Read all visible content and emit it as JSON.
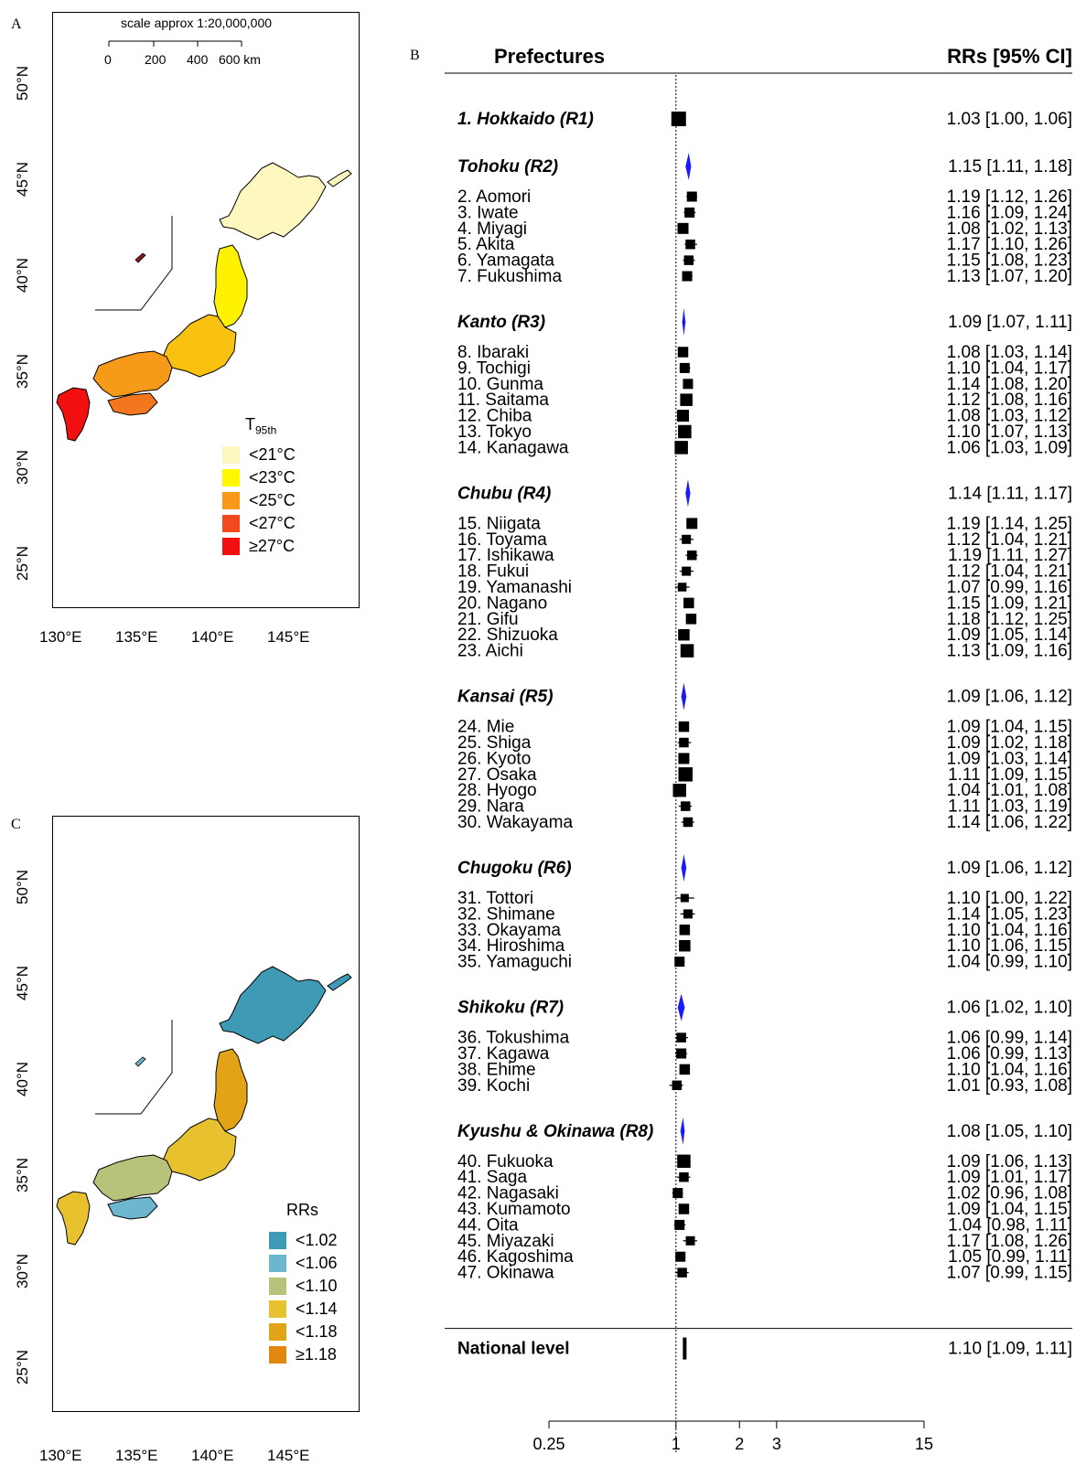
{
  "panels": {
    "a": {
      "letter": "A"
    },
    "b": {
      "letter": "B"
    },
    "c": {
      "letter": "C"
    }
  },
  "map_a": {
    "scale_title": "scale approx 1:20,000,000",
    "scale_ticks": [
      "0",
      "200",
      "400",
      "600 km"
    ],
    "lon_labels": [
      "130°E",
      "135°E",
      "140°E",
      "145°E"
    ],
    "lat_labels": [
      "25°N",
      "30°N",
      "35°N",
      "40°N",
      "45°N",
      "50°N"
    ],
    "legend_title_main": "T",
    "legend_title_sub": "95th",
    "legend": [
      {
        "label": "<21°C",
        "color": "#FFF7C0"
      },
      {
        "label": "<23°C",
        "color": "#FFF700"
      },
      {
        "label": "<25°C",
        "color": "#F79A1A"
      },
      {
        "label": "<27°C",
        "color": "#F24A1E"
      },
      {
        "label": "≥27°C",
        "color": "#F20F0F"
      }
    ]
  },
  "map_c": {
    "lon_labels": [
      "130°E",
      "135°E",
      "140°E",
      "145°E"
    ],
    "lat_labels": [
      "25°N",
      "30°N",
      "35°N",
      "40°N",
      "45°N",
      "50°N"
    ],
    "legend_title": "RRs",
    "legend": [
      {
        "label": "<1.02",
        "color": "#3E9AB5"
      },
      {
        "label": "<1.06",
        "color": "#6CB6CE"
      },
      {
        "label": "<1.10",
        "color": "#B8C27A"
      },
      {
        "label": "<1.14",
        "color": "#E7C12E"
      },
      {
        "label": "<1.18",
        "color": "#E2A416"
      },
      {
        "label": "≥1.18",
        "color": "#E4870E"
      }
    ]
  },
  "chart_data": {
    "type": "forest",
    "col_left": "Prefectures",
    "col_right": "RRs [95% CI]",
    "x_scale": "log",
    "x_ticks": [
      0.25,
      1,
      2,
      3,
      15
    ],
    "x_tick_labels": [
      "0.25",
      "1",
      "2",
      "3",
      "15"
    ],
    "reference_line": 1,
    "summary_color": "#1A1AFF",
    "rows": [
      {
        "kind": "region",
        "label": "1. Hokkaido (R1)",
        "rr": 1.03,
        "lo": 1.0,
        "hi": 1.06,
        "text": "1.03 [1.00, 1.06]",
        "w": 1.0,
        "marker": "square"
      },
      {
        "kind": "region",
        "label": "Tohoku (R2)",
        "rr": 1.15,
        "lo": 1.11,
        "hi": 1.18,
        "text": "1.15 [1.11, 1.18]"
      },
      {
        "kind": "pref",
        "label": "2. Aomori",
        "rr": 1.19,
        "lo": 1.12,
        "hi": 1.26,
        "text": "1.19 [1.12, 1.26]",
        "w": 0.5
      },
      {
        "kind": "pref",
        "label": "3. Iwate",
        "rr": 1.16,
        "lo": 1.09,
        "hi": 1.24,
        "text": "1.16 [1.09, 1.24]",
        "w": 0.5
      },
      {
        "kind": "pref",
        "label": "4. Miyagi",
        "rr": 1.08,
        "lo": 1.02,
        "hi": 1.13,
        "text": "1.08 [1.02, 1.13]",
        "w": 0.6
      },
      {
        "kind": "pref",
        "label": "5. Akita",
        "rr": 1.17,
        "lo": 1.1,
        "hi": 1.26,
        "text": "1.17 [1.10, 1.26]",
        "w": 0.45
      },
      {
        "kind": "pref",
        "label": "6. Yamagata",
        "rr": 1.15,
        "lo": 1.08,
        "hi": 1.23,
        "text": "1.15 [1.08, 1.23]",
        "w": 0.45
      },
      {
        "kind": "pref",
        "label": "7. Fukushima",
        "rr": 1.13,
        "lo": 1.07,
        "hi": 1.2,
        "text": "1.13 [1.07, 1.20]",
        "w": 0.5
      },
      {
        "kind": "region",
        "label": "Kanto (R3)",
        "rr": 1.09,
        "lo": 1.07,
        "hi": 1.11,
        "text": "1.09 [1.07, 1.11]"
      },
      {
        "kind": "pref",
        "label": "8. Ibaraki",
        "rr": 1.08,
        "lo": 1.03,
        "hi": 1.14,
        "text": "1.08 [1.03, 1.14]",
        "w": 0.55
      },
      {
        "kind": "pref",
        "label": "9. Tochigi",
        "rr": 1.1,
        "lo": 1.04,
        "hi": 1.17,
        "text": "1.10 [1.04, 1.17]",
        "w": 0.5
      },
      {
        "kind": "pref",
        "label": "10. Gunma",
        "rr": 1.14,
        "lo": 1.08,
        "hi": 1.2,
        "text": "1.14 [1.08, 1.20]",
        "w": 0.5
      },
      {
        "kind": "pref",
        "label": "11. Saitama",
        "rr": 1.12,
        "lo": 1.08,
        "hi": 1.16,
        "text": "1.12 [1.08, 1.16]",
        "w": 0.75
      },
      {
        "kind": "pref",
        "label": "12. Chiba",
        "rr": 1.08,
        "lo": 1.03,
        "hi": 1.12,
        "text": "1.08 [1.03, 1.12]",
        "w": 0.7
      },
      {
        "kind": "pref",
        "label": "13. Tokyo",
        "rr": 1.1,
        "lo": 1.07,
        "hi": 1.13,
        "text": "1.10 [1.07, 1.13]",
        "w": 0.85
      },
      {
        "kind": "pref",
        "label": "14. Kanagawa",
        "rr": 1.06,
        "lo": 1.03,
        "hi": 1.09,
        "text": "1.06 [1.03, 1.09]",
        "w": 0.85
      },
      {
        "kind": "region",
        "label": "Chubu (R4)",
        "rr": 1.14,
        "lo": 1.11,
        "hi": 1.17,
        "text": "1.14 [1.11, 1.17]"
      },
      {
        "kind": "pref",
        "label": "15. Niigata",
        "rr": 1.19,
        "lo": 1.14,
        "hi": 1.25,
        "text": "1.19 [1.14, 1.25]",
        "w": 0.6
      },
      {
        "kind": "pref",
        "label": "16. Toyama",
        "rr": 1.12,
        "lo": 1.04,
        "hi": 1.21,
        "text": "1.12 [1.04, 1.21]",
        "w": 0.4
      },
      {
        "kind": "pref",
        "label": "17. Ishikawa",
        "rr": 1.19,
        "lo": 1.11,
        "hi": 1.27,
        "text": "1.19 [1.11, 1.27]",
        "w": 0.45
      },
      {
        "kind": "pref",
        "label": "18. Fukui",
        "rr": 1.12,
        "lo": 1.04,
        "hi": 1.21,
        "text": "1.12 [1.04, 1.21]",
        "w": 0.4
      },
      {
        "kind": "pref",
        "label": "19. Yamanashi",
        "rr": 1.07,
        "lo": 0.99,
        "hi": 1.16,
        "text": "1.07 [0.99, 1.16]",
        "w": 0.35
      },
      {
        "kind": "pref",
        "label": "20. Nagano",
        "rr": 1.15,
        "lo": 1.09,
        "hi": 1.21,
        "text": "1.15 [1.09, 1.21]",
        "w": 0.55
      },
      {
        "kind": "pref",
        "label": "21. Gifu",
        "rr": 1.18,
        "lo": 1.12,
        "hi": 1.25,
        "text": "1.18 [1.12, 1.25]",
        "w": 0.55
      },
      {
        "kind": "pref",
        "label": "22. Shizuoka",
        "rr": 1.09,
        "lo": 1.05,
        "hi": 1.14,
        "text": "1.09 [1.05, 1.14]",
        "w": 0.65
      },
      {
        "kind": "pref",
        "label": "23. Aichi",
        "rr": 1.13,
        "lo": 1.09,
        "hi": 1.16,
        "text": "1.13 [1.09, 1.16]",
        "w": 0.85
      },
      {
        "kind": "region",
        "label": "Kansai (R5)",
        "rr": 1.09,
        "lo": 1.06,
        "hi": 1.12,
        "text": "1.09 [1.06, 1.12]"
      },
      {
        "kind": "pref",
        "label": "24. Mie",
        "rr": 1.09,
        "lo": 1.04,
        "hi": 1.15,
        "text": "1.09 [1.04, 1.15]",
        "w": 0.55
      },
      {
        "kind": "pref",
        "label": "25. Shiga",
        "rr": 1.09,
        "lo": 1.02,
        "hi": 1.18,
        "text": "1.09 [1.02, 1.18]",
        "w": 0.45
      },
      {
        "kind": "pref",
        "label": "26. Kyoto",
        "rr": 1.09,
        "lo": 1.03,
        "hi": 1.14,
        "text": "1.09 [1.03, 1.14]",
        "w": 0.6
      },
      {
        "kind": "pref",
        "label": "27. Osaka",
        "rr": 1.11,
        "lo": 1.09,
        "hi": 1.15,
        "text": "1.11 [1.09, 1.15]",
        "w": 0.95
      },
      {
        "kind": "pref",
        "label": "28. Hyogo",
        "rr": 1.04,
        "lo": 1.01,
        "hi": 1.08,
        "text": "1.04 [1.01, 1.08]",
        "w": 0.85
      },
      {
        "kind": "pref",
        "label": "29. Nara",
        "rr": 1.11,
        "lo": 1.03,
        "hi": 1.19,
        "text": "1.11 [1.03, 1.19]",
        "w": 0.45
      },
      {
        "kind": "pref",
        "label": "30. Wakayama",
        "rr": 1.14,
        "lo": 1.06,
        "hi": 1.22,
        "text": "1.14 [1.06, 1.22]",
        "w": 0.45
      },
      {
        "kind": "region",
        "label": "Chugoku (R6)",
        "rr": 1.09,
        "lo": 1.06,
        "hi": 1.12,
        "text": "1.09 [1.06, 1.12]"
      },
      {
        "kind": "pref",
        "label": "31. Tottori",
        "rr": 1.1,
        "lo": 1.0,
        "hi": 1.22,
        "text": "1.10 [1.00, 1.22]",
        "w": 0.3
      },
      {
        "kind": "pref",
        "label": "32. Shimane",
        "rr": 1.14,
        "lo": 1.05,
        "hi": 1.23,
        "text": "1.14 [1.05, 1.23]",
        "w": 0.4
      },
      {
        "kind": "pref",
        "label": "33. Okayama",
        "rr": 1.1,
        "lo": 1.04,
        "hi": 1.16,
        "text": "1.10 [1.04, 1.16]",
        "w": 0.55
      },
      {
        "kind": "pref",
        "label": "34. Hiroshima",
        "rr": 1.1,
        "lo": 1.06,
        "hi": 1.15,
        "text": "1.10 [1.06, 1.15]",
        "w": 0.65
      },
      {
        "kind": "pref",
        "label": "35. Yamaguchi",
        "rr": 1.04,
        "lo": 0.99,
        "hi": 1.1,
        "text": "1.04 [0.99, 1.10]",
        "w": 0.5
      },
      {
        "kind": "region",
        "label": "Shikoku (R7)",
        "rr": 1.06,
        "lo": 1.02,
        "hi": 1.1,
        "text": "1.06 [1.02, 1.10]"
      },
      {
        "kind": "pref",
        "label": "36. Tokushima",
        "rr": 1.06,
        "lo": 0.99,
        "hi": 1.14,
        "text": "1.06 [0.99, 1.14]",
        "w": 0.45
      },
      {
        "kind": "pref",
        "label": "37. Kagawa",
        "rr": 1.06,
        "lo": 0.99,
        "hi": 1.13,
        "text": "1.06 [0.99, 1.13]",
        "w": 0.5
      },
      {
        "kind": "pref",
        "label": "38. Ehime",
        "rr": 1.1,
        "lo": 1.04,
        "hi": 1.16,
        "text": "1.10 [1.04, 1.16]",
        "w": 0.55
      },
      {
        "kind": "pref",
        "label": "39. Kochi",
        "rr": 1.01,
        "lo": 0.93,
        "hi": 1.08,
        "text": "1.01 [0.93, 1.08]",
        "w": 0.45
      },
      {
        "kind": "region",
        "label": "Kyushu & Okinawa (R8)",
        "rr": 1.08,
        "lo": 1.05,
        "hi": 1.1,
        "text": "1.08 [1.05, 1.10]"
      },
      {
        "kind": "pref",
        "label": "40. Fukuoka",
        "rr": 1.09,
        "lo": 1.06,
        "hi": 1.13,
        "text": "1.09 [1.06, 1.13]",
        "w": 0.85
      },
      {
        "kind": "pref",
        "label": "41. Saga",
        "rr": 1.09,
        "lo": 1.01,
        "hi": 1.17,
        "text": "1.09 [1.01, 1.17]",
        "w": 0.45
      },
      {
        "kind": "pref",
        "label": "42. Nagasaki",
        "rr": 1.02,
        "lo": 0.96,
        "hi": 1.08,
        "text": "1.02 [0.96, 1.08]",
        "w": 0.5
      },
      {
        "kind": "pref",
        "label": "43. Kumamoto",
        "rr": 1.09,
        "lo": 1.04,
        "hi": 1.15,
        "text": "1.09 [1.04, 1.15]",
        "w": 0.55
      },
      {
        "kind": "pref",
        "label": "44. Oita",
        "rr": 1.04,
        "lo": 0.98,
        "hi": 1.11,
        "text": "1.04 [0.98, 1.11]",
        "w": 0.5
      },
      {
        "kind": "pref",
        "label": "45. Miyazaki",
        "rr": 1.17,
        "lo": 1.08,
        "hi": 1.26,
        "text": "1.17 [1.08, 1.26]",
        "w": 0.4
      },
      {
        "kind": "pref",
        "label": "46. Kagoshima",
        "rr": 1.05,
        "lo": 0.99,
        "hi": 1.11,
        "text": "1.05 [0.99, 1.11]",
        "w": 0.5
      },
      {
        "kind": "pref",
        "label": "47. Okinawa",
        "rr": 1.07,
        "lo": 0.99,
        "hi": 1.15,
        "text": "1.07 [0.99, 1.15]",
        "w": 0.45
      },
      {
        "kind": "national",
        "label": "National level",
        "rr": 1.1,
        "lo": 1.09,
        "hi": 1.11,
        "text": "1.10 [1.09, 1.11]",
        "marker": "bar"
      }
    ]
  }
}
